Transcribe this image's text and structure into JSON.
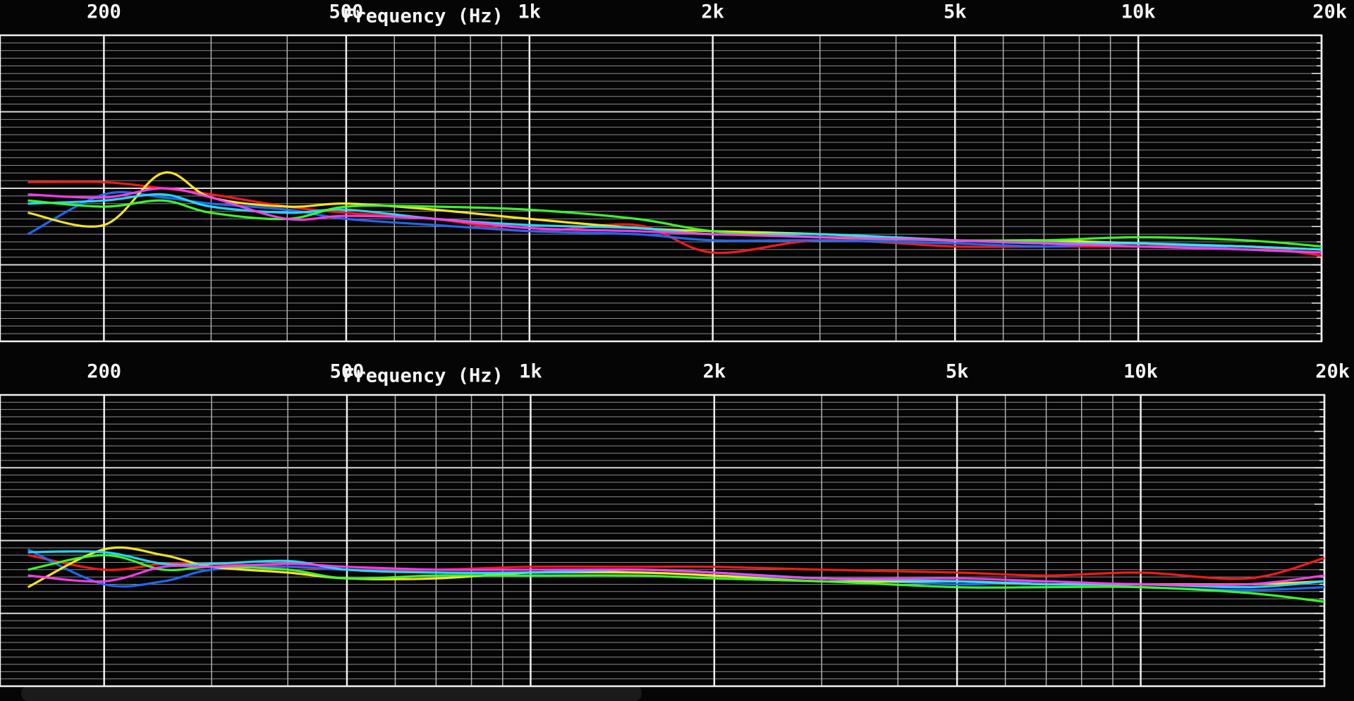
{
  "chart_data": [
    {
      "type": "line",
      "xlabel": "Frequency (Hz)",
      "xscale": "log",
      "grid": true,
      "xlim": [
        135,
        20000
      ],
      "xticks": [
        200,
        500,
        {
          "value": 1000,
          "label": "1k"
        },
        {
          "value": 2000,
          "label": "2k"
        },
        {
          "value": 5000,
          "label": "5k"
        },
        {
          "value": 10000,
          "label": "10k"
        },
        {
          "value": 20000,
          "label": "20k"
        }
      ],
      "ylim": [
        0,
        100
      ],
      "x": [
        150,
        200,
        250,
        300,
        400,
        500,
        700,
        1000,
        1500,
        2000,
        3000,
        5000,
        7000,
        10000,
        15000,
        20000
      ],
      "series": [
        {
          "color": "#ff1a1a",
          "values": [
            52,
            52,
            50,
            48,
            44,
            42,
            40,
            36,
            38,
            29,
            33,
            31,
            31,
            31,
            31,
            28
          ]
        },
        {
          "color": "#1f6bff",
          "values": [
            35,
            48,
            47,
            45,
            43,
            40,
            38,
            36,
            35,
            33,
            33,
            32,
            31,
            32,
            30,
            29
          ]
        },
        {
          "color": "#ffee22",
          "values": [
            42,
            38,
            55,
            47,
            44,
            45,
            43,
            40,
            37,
            36,
            35,
            33,
            33,
            32,
            31,
            30
          ]
        },
        {
          "color": "#22e0ff",
          "values": [
            45,
            46,
            48,
            44,
            42,
            43,
            40,
            38,
            37,
            35,
            35,
            33,
            32,
            32,
            31,
            30
          ]
        },
        {
          "color": "#3dff2e",
          "values": [
            46,
            44,
            46,
            42,
            40,
            44,
            44,
            43,
            40,
            36,
            34,
            33,
            33,
            34,
            33,
            31
          ]
        },
        {
          "color": "#ff3df0",
          "values": [
            48,
            47,
            50,
            47,
            40,
            41,
            40,
            37,
            36,
            35,
            34,
            33,
            32,
            31,
            30,
            29
          ]
        }
      ]
    },
    {
      "type": "line",
      "xlabel": "Frequency (Hz)",
      "xscale": "log",
      "grid": true,
      "xlim": [
        135,
        20000
      ],
      "xticks": [
        200,
        500,
        {
          "value": 1000,
          "label": "1k"
        },
        {
          "value": 2000,
          "label": "2k"
        },
        {
          "value": 5000,
          "label": "5k"
        },
        {
          "value": 10000,
          "label": "10k"
        },
        {
          "value": 20000,
          "label": "20k"
        }
      ],
      "ylim": [
        0,
        100
      ],
      "x": [
        150,
        200,
        250,
        300,
        400,
        500,
        700,
        1000,
        1500,
        2000,
        3000,
        5000,
        7000,
        10000,
        15000,
        20000
      ],
      "series": [
        {
          "color": "#ff1a1a",
          "values": [
            45,
            40,
            42,
            42,
            41,
            40,
            40,
            41,
            41,
            41,
            40,
            39,
            38,
            39,
            37,
            44
          ]
        },
        {
          "color": "#1f6bff",
          "values": [
            47,
            35,
            36,
            40,
            41,
            40,
            39,
            39,
            39,
            38,
            37,
            35,
            36,
            34,
            33,
            34
          ]
        },
        {
          "color": "#ffee22",
          "values": [
            34,
            47,
            45,
            41,
            39,
            37,
            37,
            39,
            39,
            38,
            36,
            36,
            35,
            35,
            35,
            36
          ]
        },
        {
          "color": "#22e0ff",
          "values": [
            46,
            46,
            42,
            42,
            43,
            40,
            39,
            39,
            40,
            39,
            37,
            36,
            35,
            35,
            34,
            36
          ]
        },
        {
          "color": "#3dff2e",
          "values": [
            40,
            45,
            40,
            41,
            40,
            37,
            38,
            38,
            38,
            37,
            36,
            34,
            34,
            34,
            32,
            29
          ]
        },
        {
          "color": "#ff3df0",
          "values": [
            38,
            36,
            41,
            41,
            42,
            41,
            40,
            40,
            40,
            39,
            37,
            37,
            36,
            35,
            35,
            38
          ]
        }
      ]
    }
  ]
}
